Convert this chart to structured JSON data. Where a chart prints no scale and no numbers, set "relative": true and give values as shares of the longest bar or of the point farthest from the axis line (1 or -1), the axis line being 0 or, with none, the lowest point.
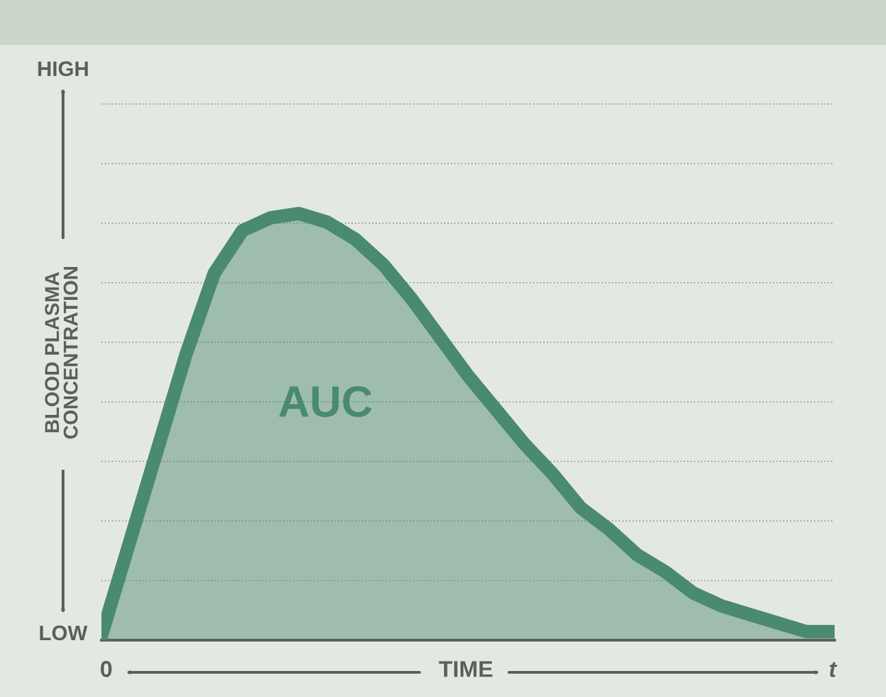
{
  "chart_data": {
    "type": "area",
    "relative": true,
    "grid": "y",
    "xlabel": "TIME",
    "ylabel": "BLOOD PLASMA\nCONCENTRATION",
    "annotations": [
      "HIGH",
      "LOW",
      "0",
      "t",
      "AUC"
    ],
    "categories": [
      null,
      null,
      null,
      null,
      null,
      null,
      null,
      null,
      null,
      null,
      null,
      null,
      null,
      null,
      null,
      null,
      null,
      null,
      null,
      null,
      null,
      null,
      null,
      null,
      null,
      null,
      null
    ],
    "series": [
      {
        "color": "#4a8a6e",
        "values": [
          0.01,
          0.23,
          0.45,
          0.67,
          0.86,
          0.96,
          0.99,
          1.0,
          0.98,
          0.94,
          0.88,
          0.8,
          0.71,
          0.62,
          0.54,
          0.46,
          0.39,
          0.31,
          0.26,
          0.2,
          0.16,
          0.11,
          0.08,
          0.06,
          0.04,
          0.02,
          0.02
        ]
      }
    ]
  }
}
